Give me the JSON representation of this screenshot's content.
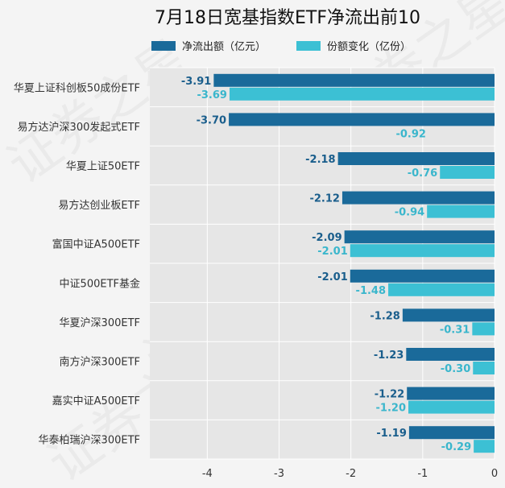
{
  "chart_data": {
    "type": "bar",
    "orientation": "horizontal",
    "title": "7月18日宽基指数ETF净流出前10",
    "categories": [
      "华夏上证科创板50成份ETF",
      "易方达沪深300发起式ETF",
      "华夏上证50ETF",
      "易方达创业板ETF",
      "富国中证A500ETF",
      "中证500ETF基金",
      "华夏沪深300ETF",
      "南方沪深300ETF",
      "嘉实中证A500ETF",
      "华泰柏瑞沪深300ETF"
    ],
    "series": [
      {
        "name": "净流出额（亿元）",
        "color": "#1a6a9a",
        "values": [
          -3.91,
          -3.7,
          -2.18,
          -2.12,
          -2.09,
          -2.01,
          -1.28,
          -1.23,
          -1.22,
          -1.19
        ]
      },
      {
        "name": "份额变化（亿份）",
        "color": "#3cc0d4",
        "values": [
          -3.69,
          null,
          -0.76,
          -0.94,
          -2.01,
          -1.48,
          -0.31,
          -0.3,
          -1.2,
          -0.29
        ]
      }
    ],
    "data_labels": [
      [
        "-3.91",
        "-3.70",
        "-2.18",
        "-2.12",
        "-2.09",
        "-2.01",
        "-1.28",
        "-1.23",
        "-1.22",
        "-1.19"
      ],
      [
        "-3.69",
        "-0.92",
        "-0.76",
        "-0.94",
        "-2.01",
        "-1.48",
        "-0.31",
        "-0.30",
        "-1.20",
        "-0.29"
      ]
    ],
    "xlim": [
      -4.8,
      0
    ],
    "xticks": [
      -4,
      -3,
      -2,
      -1,
      0
    ],
    "xtick_labels": [
      "-4",
      "-3",
      "-2",
      "-1",
      "0"
    ],
    "grid": true,
    "legend": "top",
    "label_colors": [
      "#1a5e8c",
      "#3ab6cc"
    ],
    "watermark": [
      "证券之星",
      "证券之星",
      "证券之星",
      "证券之星"
    ]
  }
}
